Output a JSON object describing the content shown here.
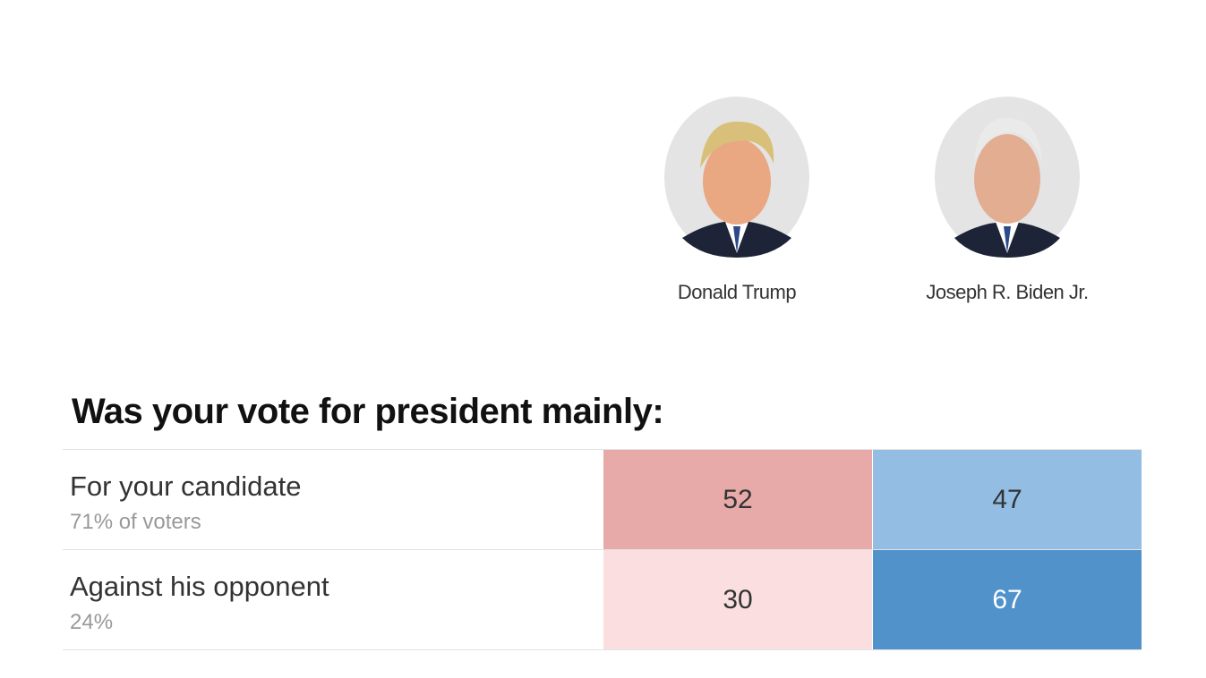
{
  "candidates": [
    {
      "name": "Donald Trump"
    },
    {
      "name": "Joseph R. Biden Jr."
    }
  ],
  "question": "Was your vote for president mainly:",
  "rows": [
    {
      "label": "For your candidate",
      "share": "71% of voters",
      "values": [
        52,
        47
      ]
    },
    {
      "label": "Against his opponent",
      "share": "24%",
      "values": [
        30,
        67
      ]
    }
  ]
}
